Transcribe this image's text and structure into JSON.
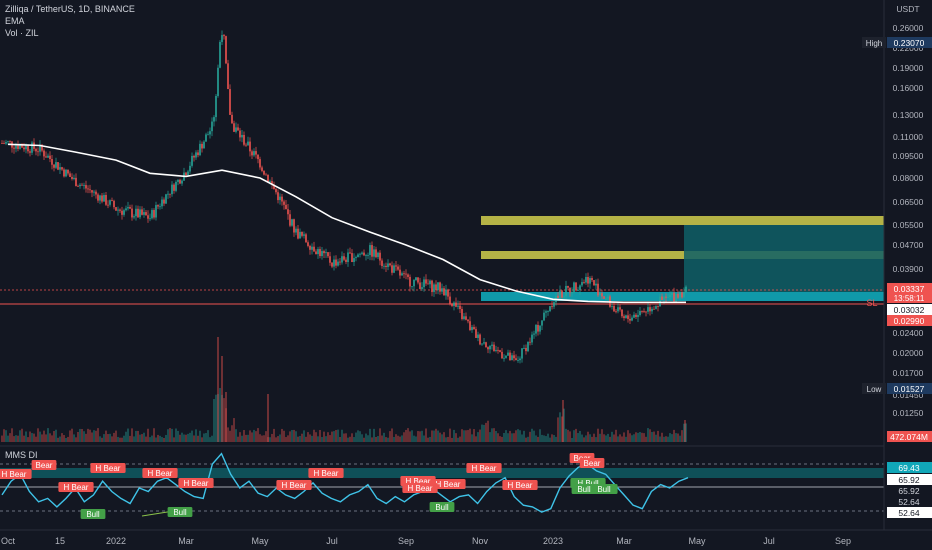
{
  "header": {
    "symbol_line": "Zilliqa / TetherUS, 1D, BINANCE",
    "indicator_1": "EMA",
    "indicator_2": "Vol · ZIL"
  },
  "axis": {
    "currency": "USDT",
    "scale": "log",
    "price_ticks": [
      "0.26000",
      "0.22000",
      "0.19000",
      "0.16000",
      "0.13000",
      "0.11000",
      "0.09500",
      "0.08000",
      "0.06500",
      "0.05500",
      "0.04700",
      "0.03900",
      "0.02400",
      "0.02000",
      "0.01700",
      "0.01450",
      "0.01250"
    ],
    "time_labels": [
      "Oct",
      "15",
      "2022",
      "Mar",
      "May",
      "Jul",
      "Sep",
      "Nov",
      "2023",
      "Mar",
      "May",
      "Jul",
      "Sep"
    ],
    "osc_ticks": [
      "80.00"
    ]
  },
  "price_labels": {
    "high_label": "High",
    "high_value": "0.23070",
    "low_label": "Low",
    "low_value": "0.01527",
    "last_price": "0.03337",
    "countdown": "13:58:11",
    "ema_value": "0.03032",
    "sl_value": "0.02990",
    "sl_tag": "SL",
    "volume_value": "472.074M"
  },
  "oscillator": {
    "name": "MMS DI",
    "labels": [
      "69.43",
      "65.92",
      "65.92",
      "52.64",
      "52.64"
    ]
  },
  "signals": {
    "bear": [
      "H Bear",
      "Bear",
      "H Bear",
      "H Bear",
      "H Bear",
      "H Bear",
      "H Bear",
      "H Bear",
      "H Bear",
      "H Bear",
      "H Bear",
      "H Bear",
      "H Bear",
      "Bear",
      "Bear"
    ],
    "bull": [
      "Bull",
      "Bull",
      "Bull",
      "H Bull",
      "H Bull",
      "Bull"
    ]
  },
  "colors": {
    "background": "#131722",
    "up": "#26a69a",
    "down": "#ef5350",
    "ema": "#ffffff",
    "osc": "#3fc3e8",
    "zone_teal": "#11a7b8",
    "target_yellow": "#c8c44a",
    "sl_red": "#ef5350"
  },
  "chart_data": {
    "type": "line",
    "title": "Zilliqa / TetherUS, 1D, BINANCE",
    "y_scale": "log",
    "ylim": [
      0.0108,
      0.27
    ],
    "x": [
      "Oct",
      "Nov",
      "Dec",
      "Jan",
      "Feb",
      "Mar",
      "Apr",
      "May",
      "Jun",
      "Jul",
      "Aug",
      "Sep",
      "Oct",
      "Nov",
      "Dec",
      "Jan",
      "Feb",
      "Mar",
      "Apr"
    ],
    "series": [
      {
        "values": [
          0.105,
          0.1,
          0.078,
          0.062,
          0.058,
          0.085,
          0.135,
          0.09,
          0.052,
          0.041,
          0.045,
          0.036,
          0.0335,
          0.0225,
          0.0185,
          0.031,
          0.0365,
          0.0265,
          0.0334
        ]
      },
      {
        "name": "EMA",
        "values": [
          0.104,
          0.103,
          0.098,
          0.092,
          0.083,
          0.081,
          0.085,
          0.08,
          0.068,
          0.058,
          0.052,
          0.047,
          0.042,
          0.036,
          0.033,
          0.031,
          0.0305,
          0.0303,
          0.0303
        ]
      }
    ],
    "extremes": {
      "high": 0.2307,
      "low": 0.01527
    },
    "volume_last": "472.074M",
    "zones": {
      "entry": 0.0331,
      "ema": 0.03032,
      "stop_loss": 0.0299,
      "target_1": 0.0447,
      "target_2": 0.0547
    }
  }
}
